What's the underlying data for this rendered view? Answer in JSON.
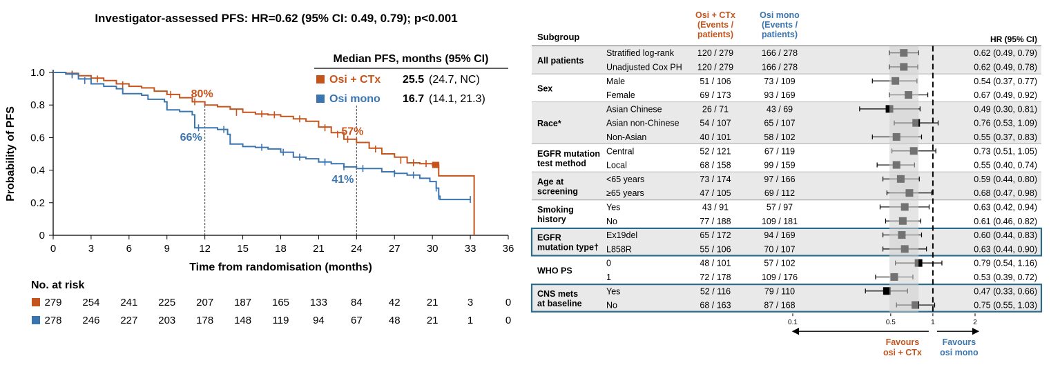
{
  "title": "Investigator-assessed PFS: HR=0.62 (95% CI: 0.49, 0.79); p<0.001",
  "colors": {
    "osi_ctx": "#c4541c",
    "osi_mono": "#3a75b0",
    "shade": "#e3e3e3",
    "box": "#2a6a8a"
  },
  "chart_data": [
    {
      "type": "line",
      "subtype": "kaplan-meier",
      "xlabel": "Time from randomisation (months)",
      "ylabel": "Probability of PFS",
      "xlim": [
        0,
        36
      ],
      "ylim": [
        0,
        1
      ],
      "xticks": [
        "0",
        "3",
        "6",
        "9",
        "12",
        "15",
        "18",
        "21",
        "24",
        "27",
        "30",
        "33",
        "36"
      ],
      "yticks": [
        "0",
        "0.2",
        "0.4",
        "0.6",
        "0.8",
        "1.0"
      ],
      "legend": {
        "title": "Median PFS, months (95% CI)",
        "items": [
          {
            "name": "Osi + CTx",
            "median": "25.5",
            "ci": "(24.7, NC)"
          },
          {
            "name": "Osi mono",
            "median": "16.7",
            "ci": "(14.1, 21.3)"
          }
        ]
      },
      "annotations": [
        {
          "text": "80%",
          "series": "osi_ctx",
          "x": 12,
          "y": 0.8
        },
        {
          "text": "66%",
          "series": "osi_mono",
          "x": 12,
          "y": 0.66
        },
        {
          "text": "57%",
          "series": "osi_ctx",
          "x": 24,
          "y": 0.57
        },
        {
          "text": "41%",
          "series": "osi_mono",
          "x": 24,
          "y": 0.41
        }
      ],
      "reference_lines_x": [
        12,
        24
      ],
      "series": [
        {
          "name": "Osi + CTx",
          "key": "osi_ctx",
          "points": [
            [
              0,
              1.0
            ],
            [
              1,
              0.995
            ],
            [
              2,
              0.98
            ],
            [
              3,
              0.965
            ],
            [
              4,
              0.95
            ],
            [
              5,
              0.93
            ],
            [
              6,
              0.915
            ],
            [
              7,
              0.905
            ],
            [
              8,
              0.885
            ],
            [
              9,
              0.865
            ],
            [
              10,
              0.845
            ],
            [
              11,
              0.82
            ],
            [
              12,
              0.8
            ],
            [
              13,
              0.79
            ],
            [
              14,
              0.775
            ],
            [
              15,
              0.755
            ],
            [
              16,
              0.745
            ],
            [
              17,
              0.74
            ],
            [
              18,
              0.73
            ],
            [
              19,
              0.715
            ],
            [
              20,
              0.7
            ],
            [
              21,
              0.665
            ],
            [
              22,
              0.63
            ],
            [
              23,
              0.59
            ],
            [
              24,
              0.57
            ],
            [
              25,
              0.535
            ],
            [
              26,
              0.5
            ],
            [
              27,
              0.48
            ],
            [
              28,
              0.445
            ],
            [
              29,
              0.44
            ],
            [
              30,
              0.43
            ],
            [
              30.5,
              0.365
            ],
            [
              31.5,
              0.365
            ],
            [
              33.3,
              0.365
            ],
            [
              33.3,
              0.0
            ]
          ],
          "censors": [
            [
              1.5,
              0.99
            ],
            [
              3.5,
              0.96
            ],
            [
              5.5,
              0.925
            ],
            [
              9.3,
              0.865
            ],
            [
              11.2,
              0.82
            ],
            [
              14.5,
              0.755
            ],
            [
              16.5,
              0.745
            ],
            [
              17.5,
              0.74
            ],
            [
              19.5,
              0.715
            ],
            [
              21.5,
              0.66
            ],
            [
              22.5,
              0.62
            ],
            [
              23.3,
              0.59
            ],
            [
              25.5,
              0.53
            ],
            [
              27.5,
              0.46
            ],
            [
              28.5,
              0.445
            ],
            [
              29.5,
              0.44
            ],
            [
              30.5,
              0.43
            ]
          ]
        },
        {
          "name": "Osi mono",
          "key": "osi_mono",
          "points": [
            [
              0,
              1.0
            ],
            [
              1,
              0.99
            ],
            [
              2,
              0.96
            ],
            [
              3,
              0.93
            ],
            [
              4,
              0.915
            ],
            [
              5,
              0.9
            ],
            [
              5.5,
              0.87
            ],
            [
              6,
              0.87
            ],
            [
              7,
              0.86
            ],
            [
              7.5,
              0.835
            ],
            [
              8,
              0.835
            ],
            [
              8.8,
              0.82
            ],
            [
              9,
              0.77
            ],
            [
              10,
              0.76
            ],
            [
              11,
              0.74
            ],
            [
              11.2,
              0.66
            ],
            [
              12,
              0.66
            ],
            [
              13,
              0.65
            ],
            [
              13.8,
              0.62
            ],
            [
              14,
              0.56
            ],
            [
              15,
              0.545
            ],
            [
              16,
              0.54
            ],
            [
              17,
              0.53
            ],
            [
              18,
              0.51
            ],
            [
              19,
              0.48
            ],
            [
              20,
              0.47
            ],
            [
              21,
              0.45
            ],
            [
              22,
              0.44
            ],
            [
              23,
              0.42
            ],
            [
              24,
              0.41
            ],
            [
              25,
              0.41
            ],
            [
              26,
              0.39
            ],
            [
              27,
              0.38
            ],
            [
              28,
              0.37
            ],
            [
              29,
              0.35
            ],
            [
              29.8,
              0.33
            ],
            [
              30.3,
              0.29
            ],
            [
              30.5,
              0.24
            ],
            [
              30.6,
              0.22
            ],
            [
              33,
              0.22
            ]
          ],
          "censors": [
            [
              1.5,
              0.985
            ],
            [
              2.5,
              0.95
            ],
            [
              11.5,
              0.66
            ],
            [
              13.5,
              0.65
            ],
            [
              16.5,
              0.54
            ],
            [
              18.2,
              0.51
            ],
            [
              19.5,
              0.48
            ],
            [
              21.5,
              0.45
            ],
            [
              23,
              0.42
            ],
            [
              24.5,
              0.41
            ],
            [
              27,
              0.38
            ],
            [
              28.5,
              0.37
            ],
            [
              30.3,
              0.29
            ],
            [
              30.5,
              0.24
            ],
            [
              33,
              0.22
            ]
          ]
        }
      ],
      "at_risk": {
        "title": "No. at risk",
        "times": [
          "0",
          "3",
          "6",
          "9",
          "12",
          "15",
          "18",
          "21",
          "24",
          "27",
          "30",
          "33",
          "36"
        ],
        "rows": [
          {
            "key": "osi_ctx",
            "values": [
              "279",
              "254",
              "241",
              "225",
              "207",
              "187",
              "165",
              "133",
              "84",
              "42",
              "21",
              "3",
              "0"
            ]
          },
          {
            "key": "osi_mono",
            "values": [
              "278",
              "246",
              "227",
              "203",
              "178",
              "148",
              "119",
              "94",
              "67",
              "48",
              "21",
              "1",
              "0"
            ]
          }
        ]
      }
    },
    {
      "type": "forest",
      "header": {
        "subgroup": "Subgroup",
        "arm1": [
          "Osi + CTx",
          "(Events /",
          "patients)"
        ],
        "arm2": [
          "Osi mono",
          "(Events /",
          "patients)"
        ],
        "hr": "HR (95% CI)"
      },
      "axis": {
        "scale": "log",
        "ticks": [
          "0.1",
          "0.5",
          "1",
          "2"
        ],
        "tick_values": [
          0.1,
          0.5,
          1,
          2
        ],
        "xlim": [
          0.1,
          2
        ],
        "ref": 1
      },
      "favours": {
        "left": [
          "Favours",
          "osi + CTx"
        ],
        "right": [
          "Favours",
          "osi mono"
        ]
      },
      "groups": [
        {
          "label": [
            "All patients"
          ],
          "shaded": true,
          "boxed": false,
          "rows": [
            {
              "label": "Stratified log-rank",
              "arm1": "120 / 279",
              "arm2": "166 / 278",
              "hr": 0.62,
              "lo": 0.49,
              "hi": 0.79,
              "text": "0.62 (0.49, 0.79)"
            },
            {
              "label": "Unadjusted Cox PH",
              "arm1": "120 / 279",
              "arm2": "166 / 278",
              "hr": 0.62,
              "lo": 0.49,
              "hi": 0.78,
              "text": "0.62 (0.49, 0.78)"
            }
          ]
        },
        {
          "label": [
            "Sex"
          ],
          "shaded": false,
          "boxed": false,
          "rows": [
            {
              "label": "Male",
              "arm1": "51 / 106",
              "arm2": "73 / 109",
              "hr": 0.54,
              "lo": 0.37,
              "hi": 0.77,
              "text": "0.54 (0.37, 0.77)"
            },
            {
              "label": "Female",
              "arm1": "69 / 173",
              "arm2": "93 / 169",
              "hr": 0.67,
              "lo": 0.49,
              "hi": 0.92,
              "text": "0.67 (0.49, 0.92)"
            }
          ]
        },
        {
          "label": [
            "Race*"
          ],
          "shaded": true,
          "boxed": false,
          "rows": [
            {
              "label": "Asian Chinese",
              "arm1": "26 / 71",
              "arm2": "43 / 69",
              "hr": 0.49,
              "lo": 0.3,
              "hi": 0.81,
              "text": "0.49 (0.30, 0.81)"
            },
            {
              "label": "Asian non-Chinese",
              "arm1": "54 / 107",
              "arm2": "65 / 107",
              "hr": 0.76,
              "lo": 0.53,
              "hi": 1.09,
              "text": "0.76 (0.53, 1.09)"
            },
            {
              "label": "Non-Asian",
              "arm1": "40 / 101",
              "arm2": "58 / 102",
              "hr": 0.55,
              "lo": 0.37,
              "hi": 0.83,
              "text": "0.55 (0.37, 0.83)"
            }
          ]
        },
        {
          "label": [
            "EGFR mutation",
            "test method"
          ],
          "shaded": false,
          "boxed": false,
          "rows": [
            {
              "label": "Central",
              "arm1": "52 / 121",
              "arm2": "67 / 119",
              "hr": 0.73,
              "lo": 0.51,
              "hi": 1.05,
              "text": "0.73 (0.51, 1.05)"
            },
            {
              "label": "Local",
              "arm1": "68 / 158",
              "arm2": "99 / 159",
              "hr": 0.55,
              "lo": 0.4,
              "hi": 0.74,
              "text": "0.55 (0.40, 0.74)"
            }
          ]
        },
        {
          "label": [
            "Age at",
            "screening"
          ],
          "shaded": true,
          "boxed": false,
          "rows": [
            {
              "label": "<65 years",
              "arm1": "73 / 174",
              "arm2": "97 / 166",
              "hr": 0.59,
              "lo": 0.44,
              "hi": 0.8,
              "text": "0.59 (0.44, 0.80)"
            },
            {
              "label": "≥65 years",
              "arm1": "47 / 105",
              "arm2": "69 / 112",
              "hr": 0.68,
              "lo": 0.47,
              "hi": 0.98,
              "text": "0.68 (0.47, 0.98)"
            }
          ]
        },
        {
          "label": [
            "Smoking",
            "history"
          ],
          "shaded": false,
          "boxed": false,
          "rows": [
            {
              "label": "Yes",
              "arm1": "43 / 91",
              "arm2": "57 / 97",
              "hr": 0.63,
              "lo": 0.42,
              "hi": 0.94,
              "text": "0.63 (0.42, 0.94)"
            },
            {
              "label": "No",
              "arm1": "77 / 188",
              "arm2": "109 / 181",
              "hr": 0.61,
              "lo": 0.46,
              "hi": 0.82,
              "text": "0.61 (0.46, 0.82)"
            }
          ]
        },
        {
          "label": [
            "EGFR",
            "mutation type†"
          ],
          "shaded": true,
          "boxed": true,
          "rows": [
            {
              "label": "Ex19del",
              "arm1": "65 / 172",
              "arm2": "94 / 169",
              "hr": 0.6,
              "lo": 0.44,
              "hi": 0.83,
              "text": "0.60 (0.44, 0.83)"
            },
            {
              "label": "L858R",
              "arm1": "55 / 106",
              "arm2": "70 / 107",
              "hr": 0.63,
              "lo": 0.44,
              "hi": 0.9,
              "text": "0.63 (0.44, 0.90)"
            }
          ]
        },
        {
          "label": [
            "WHO PS"
          ],
          "shaded": false,
          "boxed": false,
          "rows": [
            {
              "label": "0",
              "arm1": "48 / 101",
              "arm2": "57 / 102",
              "hr": 0.79,
              "lo": 0.54,
              "hi": 1.16,
              "text": "0.79 (0.54, 1.16)"
            },
            {
              "label": "1",
              "arm1": "72 / 178",
              "arm2": "109 / 176",
              "hr": 0.53,
              "lo": 0.39,
              "hi": 0.72,
              "text": "0.53 (0.39, 0.72)"
            }
          ]
        },
        {
          "label": [
            "CNS mets",
            "at baseline"
          ],
          "shaded": true,
          "boxed": true,
          "rows": [
            {
              "label": "Yes",
              "arm1": "52 / 116",
              "arm2": "79 / 110",
              "hr": 0.47,
              "lo": 0.33,
              "hi": 0.66,
              "text": "0.47 (0.33, 0.66)"
            },
            {
              "label": "No",
              "arm1": "68 / 163",
              "arm2": "87 / 168",
              "hr": 0.75,
              "lo": 0.55,
              "hi": 1.03,
              "text": "0.75 (0.55, 1.03)"
            }
          ]
        }
      ]
    }
  ]
}
